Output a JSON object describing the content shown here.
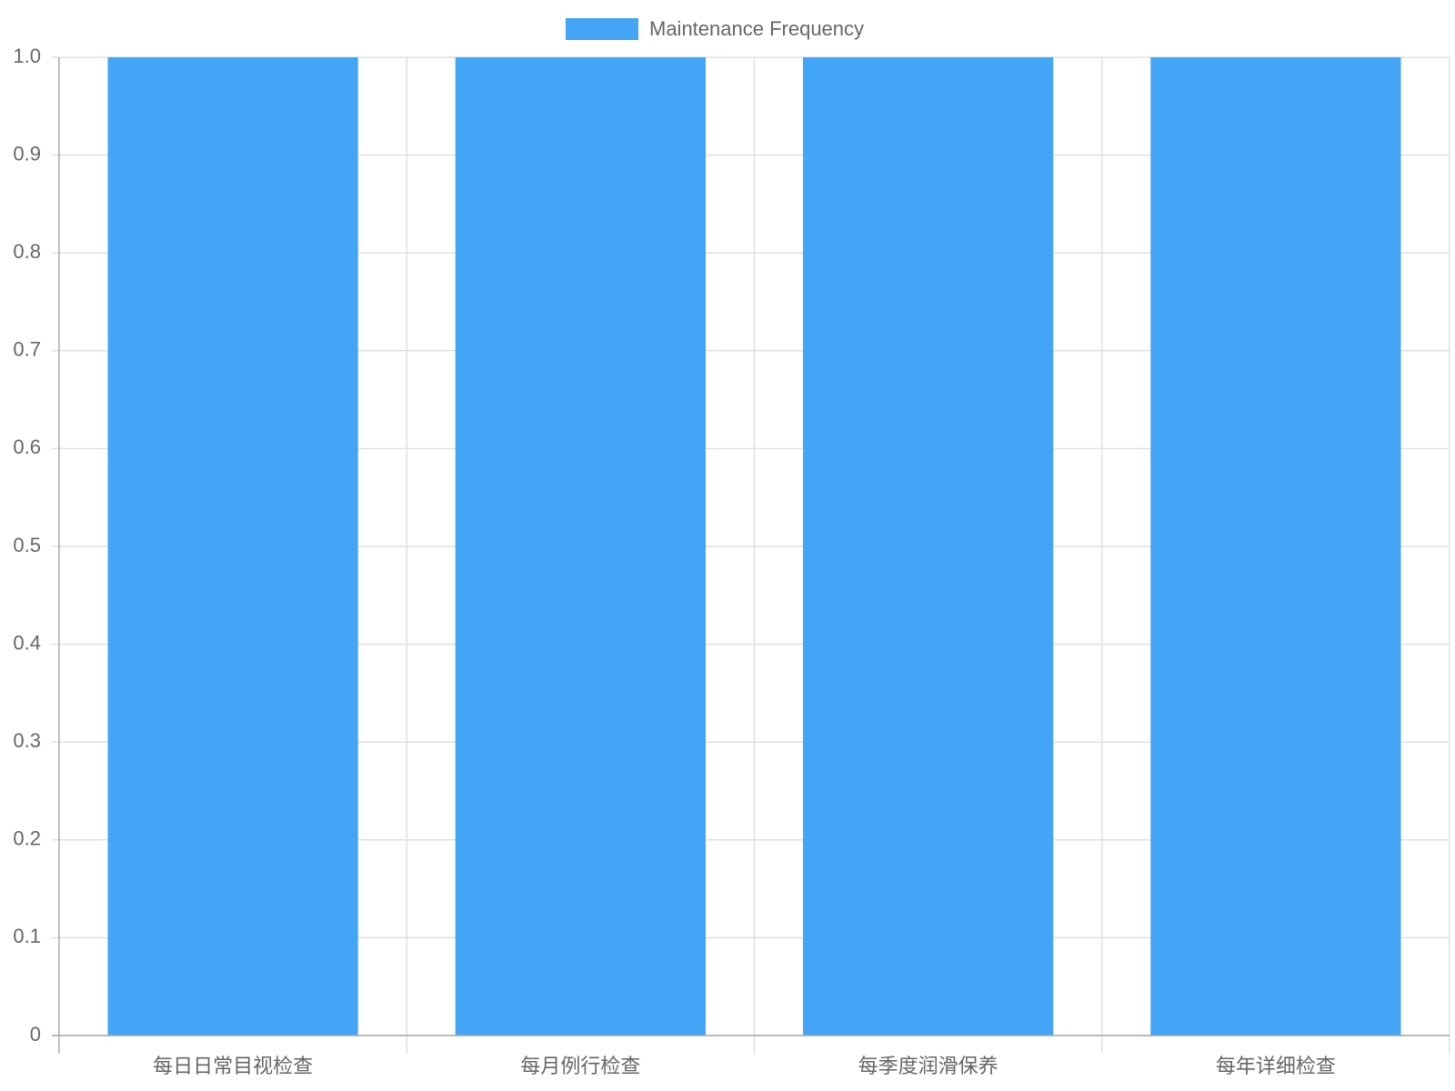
{
  "chart_data": {
    "type": "bar",
    "categories": [
      "每日日常目视检查",
      "每月例行检查",
      "每季度润滑保养",
      "每年详细检查"
    ],
    "series": [
      {
        "name": "Maintenance Frequency",
        "color": "#42a5f5",
        "values": [
          1,
          1,
          1,
          1
        ]
      }
    ],
    "ylim": [
      0,
      1
    ],
    "yticks": [
      0,
      0.1,
      0.2,
      0.3,
      0.4,
      0.5,
      0.6,
      0.7,
      0.8,
      0.9,
      {
        "value": 1,
        "label": "1.0"
      }
    ],
    "grid": true,
    "legend": "top"
  }
}
